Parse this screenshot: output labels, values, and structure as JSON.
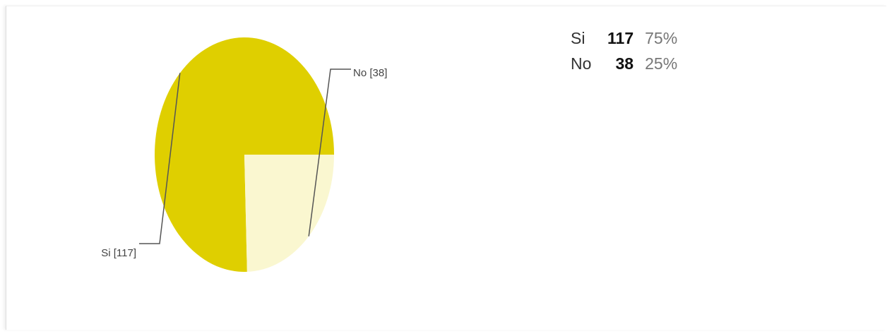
{
  "chart_data": {
    "type": "pie",
    "categories": [
      "Si",
      "No"
    ],
    "values": [
      117,
      38
    ],
    "slice_labels": [
      "Si [117]",
      "No [38]"
    ],
    "colors": [
      "#dfcf00",
      "#faf7d0"
    ],
    "start_angle_deg": 0,
    "direction": "counter-clockwise",
    "legend": {
      "rows": [
        {
          "category": "Si",
          "count": "117",
          "percent": "75%"
        },
        {
          "category": "No",
          "count": "38",
          "percent": "25%"
        }
      ]
    }
  }
}
